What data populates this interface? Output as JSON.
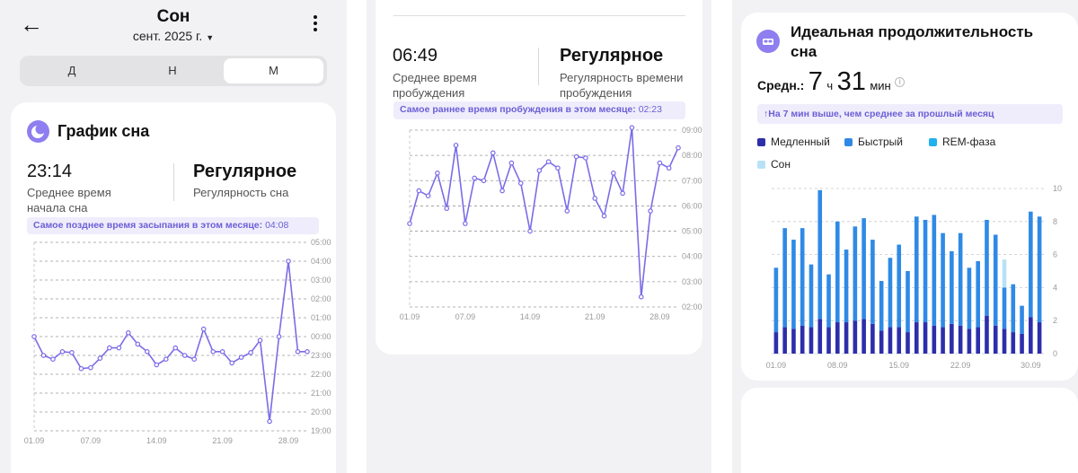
{
  "colors": {
    "accent": "#7b6ce8",
    "deep": "#2c2eab",
    "light_blue": "#2f8ae6",
    "rem": "#1fb2ec",
    "awake": "#b7e2f6"
  },
  "panel1": {
    "title": "Сон",
    "month": "сент. 2025 г.",
    "tabs": [
      "Д",
      "Н",
      "М"
    ],
    "active_tab": "М",
    "card_title": "График сна",
    "stat_time": "23:14",
    "stat_time_label": "Среднее время начала сна",
    "stat_reg": "Регулярное",
    "stat_reg_label": "Регулярность сна",
    "note_text": "Самое позднее время засыпания в этом месяце:",
    "note_value": "04:08"
  },
  "panel2": {
    "stat_time": "06:49",
    "stat_time_label": "Среднее время пробуждения",
    "stat_reg": "Регулярное",
    "stat_reg_label": "Регулярность времени пробуждения",
    "note_text": "Самое раннее время пробуждения в этом месяце:",
    "note_value": "02:23"
  },
  "panel3": {
    "card_title": "Идеальная продолжительность сна",
    "avg_label": "Средн.:",
    "avg_hours": "7",
    "avg_h_unit": "ч",
    "avg_minutes": "31",
    "avg_m_unit": "мин",
    "compare_note": "На 7 мин выше, чем среднее за прошлый месяц",
    "legend": [
      "Медленный",
      "Быстрый",
      "REM-фаза",
      "Сон"
    ]
  },
  "chart_data": [
    {
      "type": "line",
      "x_labels": [
        "01.09",
        "07.09",
        "14.09",
        "21.09",
        "28.09"
      ],
      "y_ticks": [
        "19:00",
        "20:00",
        "21:00",
        "22:00",
        "23:00",
        "00:00",
        "01:00",
        "02:00",
        "03:00",
        "04:00",
        "05:00"
      ],
      "y_range_hours": [
        19,
        29
      ],
      "values": [
        24.0,
        23.0,
        22.8,
        23.2,
        23.15,
        22.3,
        22.35,
        22.85,
        23.4,
        23.4,
        24.2,
        23.6,
        23.2,
        22.5,
        22.8,
        23.4,
        23.0,
        22.8,
        24.4,
        23.2,
        23.2,
        22.6,
        22.9,
        23.15,
        23.8,
        19.5,
        24.0,
        28.0,
        23.2,
        23.2
      ]
    },
    {
      "type": "line",
      "x_labels": [
        "01.09",
        "07.09",
        "14.09",
        "21.09",
        "28.09"
      ],
      "y_ticks": [
        "02:00",
        "03:00",
        "04:00",
        "05:00",
        "06:00",
        "07:00",
        "08:00",
        "09:00"
      ],
      "y_range_hours": [
        2,
        9
      ],
      "values": [
        5.3,
        6.6,
        6.4,
        7.3,
        5.9,
        8.4,
        5.3,
        7.1,
        7.0,
        8.1,
        6.6,
        7.7,
        6.9,
        5.0,
        7.4,
        7.75,
        7.5,
        5.8,
        7.95,
        7.9,
        6.3,
        5.6,
        7.3,
        6.5,
        9.1,
        2.4,
        5.8,
        7.7,
        7.5,
        8.3
      ]
    },
    {
      "type": "bar",
      "x_labels": [
        "01.09",
        "08.09",
        "15.09",
        "22.09",
        "30.09"
      ],
      "y_ticks": [
        "0",
        "2",
        "4",
        "6",
        "8",
        "10"
      ],
      "ylim": [
        0,
        10
      ],
      "series": [
        {
          "name": "Медленный",
          "values": [
            1.3,
            1.6,
            1.5,
            1.7,
            1.6,
            2.1,
            1.6,
            1.9,
            1.9,
            2.0,
            2.1,
            1.8,
            1.4,
            1.6,
            1.6,
            1.3,
            1.9,
            1.9,
            1.7,
            1.6,
            1.8,
            1.7,
            1.5,
            1.6,
            2.3,
            1.7,
            1.5,
            1.3,
            1.2,
            2.2,
            1.9
          ]
        },
        {
          "name": "Быстрый",
          "values": [
            3.9,
            6.0,
            5.4,
            5.9,
            3.8,
            7.8,
            3.2,
            6.1,
            4.4,
            5.7,
            6.1,
            5.1,
            3.0,
            4.2,
            5.0,
            3.7,
            6.4,
            6.2,
            6.7,
            5.7,
            4.4,
            5.6,
            3.7,
            4.0,
            5.8,
            5.5,
            2.5,
            2.9,
            1.7,
            6.4,
            6.4
          ]
        },
        {
          "name": "Сон",
          "values": [
            0,
            0,
            0,
            0,
            0,
            0,
            0,
            0,
            0,
            0,
            0,
            0,
            0,
            0,
            0,
            0,
            0,
            0,
            0,
            0,
            0,
            0,
            0,
            0,
            0,
            0,
            1.7,
            0,
            0,
            0,
            0
          ]
        }
      ]
    }
  ]
}
